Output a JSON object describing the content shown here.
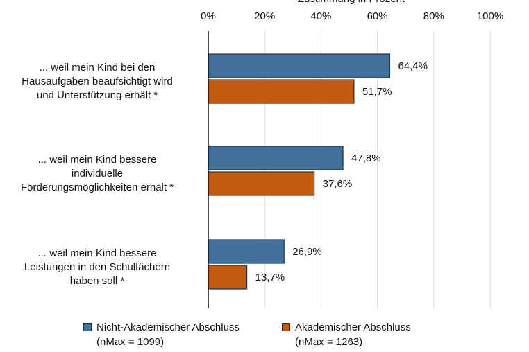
{
  "chart_data": {
    "type": "bar",
    "orientation": "horizontal",
    "title": "Zustimmung in Prozent",
    "categories": [
      "... weil mein Kind bei den Hausaufgaben beaufsichtigt wird und Unterstützung erhält *",
      "... weil mein Kind bessere individuelle Förderungsmöglichkeiten erhält *",
      "... weil mein Kind bessere Leistungen in den Schulfächern haben soll *"
    ],
    "category_lines": [
      [
        "... weil mein Kind bei den",
        "Hausaufgaben beaufsichtigt wird",
        "und Unterstützung erhält *"
      ],
      [
        "... weil mein Kind bessere",
        "individuelle",
        "Förderungsmöglichkeiten erhält *"
      ],
      [
        "... weil mein Kind bessere",
        "Leistungen in den Schulfächern",
        "haben soll *"
      ]
    ],
    "series": [
      {
        "name": "Nicht-Akademischer Abschluss",
        "note": "(nMax = 1099)",
        "color": "#41719c",
        "values": [
          64.4,
          47.8,
          26.9
        ],
        "labels": [
          "64,4%",
          "47,8%",
          "26,9%"
        ]
      },
      {
        "name": "Akademischer Abschluss",
        "note": "(nMax = 1263)",
        "color": "#c55a11",
        "values": [
          51.7,
          37.6,
          13.7
        ],
        "labels": [
          "51,7%",
          "37,6%",
          "13,7%"
        ]
      }
    ],
    "xlim": [
      0,
      100
    ],
    "xticks": [
      "0%",
      "20%",
      "40%",
      "60%",
      "80%",
      "100%"
    ],
    "grid": true,
    "legend_position": "bottom"
  }
}
